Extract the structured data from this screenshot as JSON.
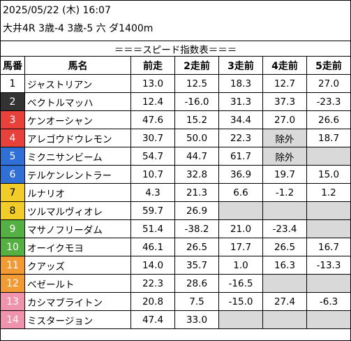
{
  "header": {
    "datetime": "2025/05/22 (木) 16:07",
    "race": "大井4R 3歳-4 3歳-5 六 ダ1400m"
  },
  "table_title": "＝＝＝スピード指数表＝＝＝",
  "columns": [
    "馬番",
    "馬名",
    "前走",
    "2走前",
    "3走前",
    "4走前",
    "5走前"
  ],
  "rows": [
    {
      "num": "1",
      "name": "ジャストリアン",
      "bg": "#ffffff",
      "fg": "#000000",
      "v": [
        "13.0",
        "12.5",
        "18.3",
        "12.7",
        "27.0"
      ]
    },
    {
      "num": "2",
      "name": "ベクトルマッハ",
      "bg": "#333333",
      "fg": "#ffffff",
      "v": [
        "12.4",
        "-16.0",
        "31.3",
        "37.3",
        "-23.3"
      ]
    },
    {
      "num": "3",
      "name": "ケンオーシャン",
      "bg": "#e8413c",
      "fg": "#ffffff",
      "v": [
        "47.6",
        "15.2",
        "34.4",
        "27.0",
        "26.6"
      ]
    },
    {
      "num": "4",
      "name": "アレゴウドウレモン",
      "bg": "#e8413c",
      "fg": "#ffffff",
      "v": [
        "30.7",
        "50.0",
        "22.3",
        "除外",
        "18.7"
      ]
    },
    {
      "num": "5",
      "name": "ミクニサンビーム",
      "bg": "#2f6fd6",
      "fg": "#ffffff",
      "v": [
        "54.7",
        "44.7",
        "61.7",
        "除外",
        ""
      ]
    },
    {
      "num": "6",
      "name": "テルケンレントラー",
      "bg": "#2f6fd6",
      "fg": "#ffffff",
      "v": [
        "10.7",
        "32.8",
        "36.9",
        "19.7",
        "15.0"
      ]
    },
    {
      "num": "7",
      "name": "ルナリオ",
      "bg": "#f2cc29",
      "fg": "#000000",
      "v": [
        "4.3",
        "21.3",
        "6.6",
        "-1.2",
        "1.2"
      ]
    },
    {
      "num": "8",
      "name": "ツルマルヴィオレ",
      "bg": "#f2cc29",
      "fg": "#000000",
      "v": [
        "59.7",
        "26.9",
        "",
        "",
        ""
      ]
    },
    {
      "num": "9",
      "name": "マサノフリーダム",
      "bg": "#55b043",
      "fg": "#ffffff",
      "v": [
        "51.4",
        "-38.2",
        "21.0",
        "-23.4",
        ""
      ]
    },
    {
      "num": "10",
      "name": "オーイクモヨ",
      "bg": "#55b043",
      "fg": "#ffffff",
      "v": [
        "46.1",
        "26.5",
        "17.7",
        "26.5",
        "16.7"
      ]
    },
    {
      "num": "11",
      "name": "クアッズ",
      "bg": "#f29a33",
      "fg": "#ffffff",
      "v": [
        "14.0",
        "35.7",
        "1.0",
        "16.3",
        "-13.3"
      ]
    },
    {
      "num": "12",
      "name": "ベゼールト",
      "bg": "#f29a33",
      "fg": "#ffffff",
      "v": [
        "22.3",
        "28.6",
        "-16.5",
        "",
        ""
      ]
    },
    {
      "num": "13",
      "name": "カシマブライトン",
      "bg": "#f093ae",
      "fg": "#ffffff",
      "v": [
        "20.8",
        "7.5",
        "-15.0",
        "27.4",
        "-6.3"
      ]
    },
    {
      "num": "14",
      "name": "ミスタージョン",
      "bg": "#f093ae",
      "fg": "#ffffff",
      "v": [
        "47.4",
        "33.0",
        "",
        "",
        ""
      ]
    }
  ]
}
